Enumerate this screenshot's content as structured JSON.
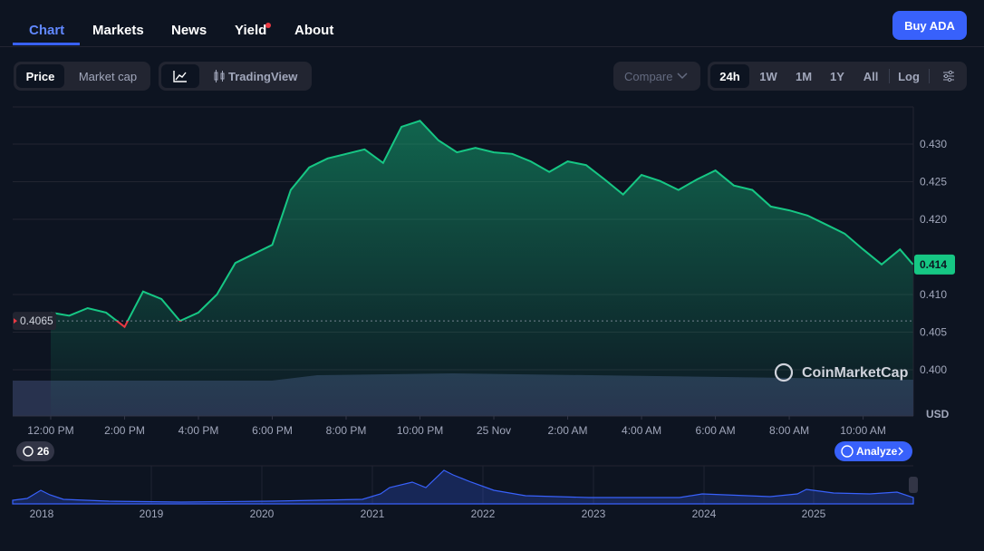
{
  "nav": {
    "tabs": [
      "Chart",
      "Markets",
      "News",
      "Yield",
      "About"
    ],
    "buy_button": "Buy ADA"
  },
  "toolbar": {
    "metric_tabs": [
      "Price",
      "Market cap"
    ],
    "tradingview": "TradingView",
    "compare": "Compare",
    "ranges": [
      "24h",
      "1W",
      "1M",
      "1Y",
      "All"
    ],
    "log": "Log"
  },
  "chart_data": {
    "type": "line",
    "color": "#16c784",
    "below_color": "#ea3943",
    "x": [
      0,
      0.5,
      1,
      1.5,
      2,
      2.5,
      3,
      3.5,
      4,
      4.5,
      5,
      5.5,
      6,
      6.5,
      7,
      7.5,
      8,
      8.5,
      9,
      9.5,
      10,
      10.5,
      11,
      11.5,
      12,
      12.5,
      13,
      13.5,
      14,
      14.5,
      15,
      15.5,
      16,
      16.5,
      17,
      17.5,
      18,
      18.5,
      19,
      19.5,
      20,
      20.5,
      21,
      21.5,
      22,
      22.5,
      23,
      23.35
    ],
    "values": [
      0.4076,
      0.4072,
      0.4082,
      0.4076,
      0.4057,
      0.4104,
      0.4094,
      0.4065,
      0.4076,
      0.41,
      0.4142,
      0.4154,
      0.4166,
      0.4239,
      0.4269,
      0.4281,
      0.4287,
      0.4293,
      0.4275,
      0.4323,
      0.4331,
      0.4305,
      0.4289,
      0.4295,
      0.4289,
      0.4287,
      0.4277,
      0.4263,
      0.4277,
      0.4272,
      0.4253,
      0.4233,
      0.4259,
      0.4251,
      0.4239,
      0.4253,
      0.4265,
      0.4245,
      0.4239,
      0.4217,
      0.4212,
      0.4205,
      0.4193,
      0.4181,
      0.416,
      0.414,
      0.416,
      0.414
    ],
    "xlim": [
      -1.03,
      23.36
    ],
    "xticks": [
      {
        "value": 0,
        "label": "12:00 PM"
      },
      {
        "value": 2,
        "label": "2:00 PM"
      },
      {
        "value": 4,
        "label": "4:00 PM"
      },
      {
        "value": 6,
        "label": "6:00 PM"
      },
      {
        "value": 8,
        "label": "8:00 PM"
      },
      {
        "value": 10,
        "label": "10:00 PM"
      },
      {
        "value": 12,
        "label": "25 Nov"
      },
      {
        "value": 14,
        "label": "2:00 AM"
      },
      {
        "value": 16,
        "label": "4:00 AM"
      },
      {
        "value": 18,
        "label": "6:00 AM"
      },
      {
        "value": 20,
        "label": "8:00 AM"
      },
      {
        "value": 22,
        "label": "10:00 AM"
      }
    ],
    "ylim": [
      0.39386,
      0.43494
    ],
    "yticks": [
      {
        "value": 0.4,
        "label": "0.400"
      },
      0.405,
      {
        "value": 0.41,
        "label": "0.410"
      },
      {
        "value": 0.42,
        "label": "0.420"
      },
      0.425,
      {
        "value": 0.43,
        "label": "0.430"
      }
    ],
    "grid": true,
    "y_unit": "USD",
    "reference_price": 0.4065,
    "watermark": "CoinMarketCap"
  },
  "controls": {
    "alerts_count": "26",
    "analyze": "Analyze"
  },
  "overview": {
    "year_labels": [
      "2018",
      "2019",
      "2020",
      "2021",
      "2022",
      "2023",
      "2024",
      "2025"
    ]
  }
}
